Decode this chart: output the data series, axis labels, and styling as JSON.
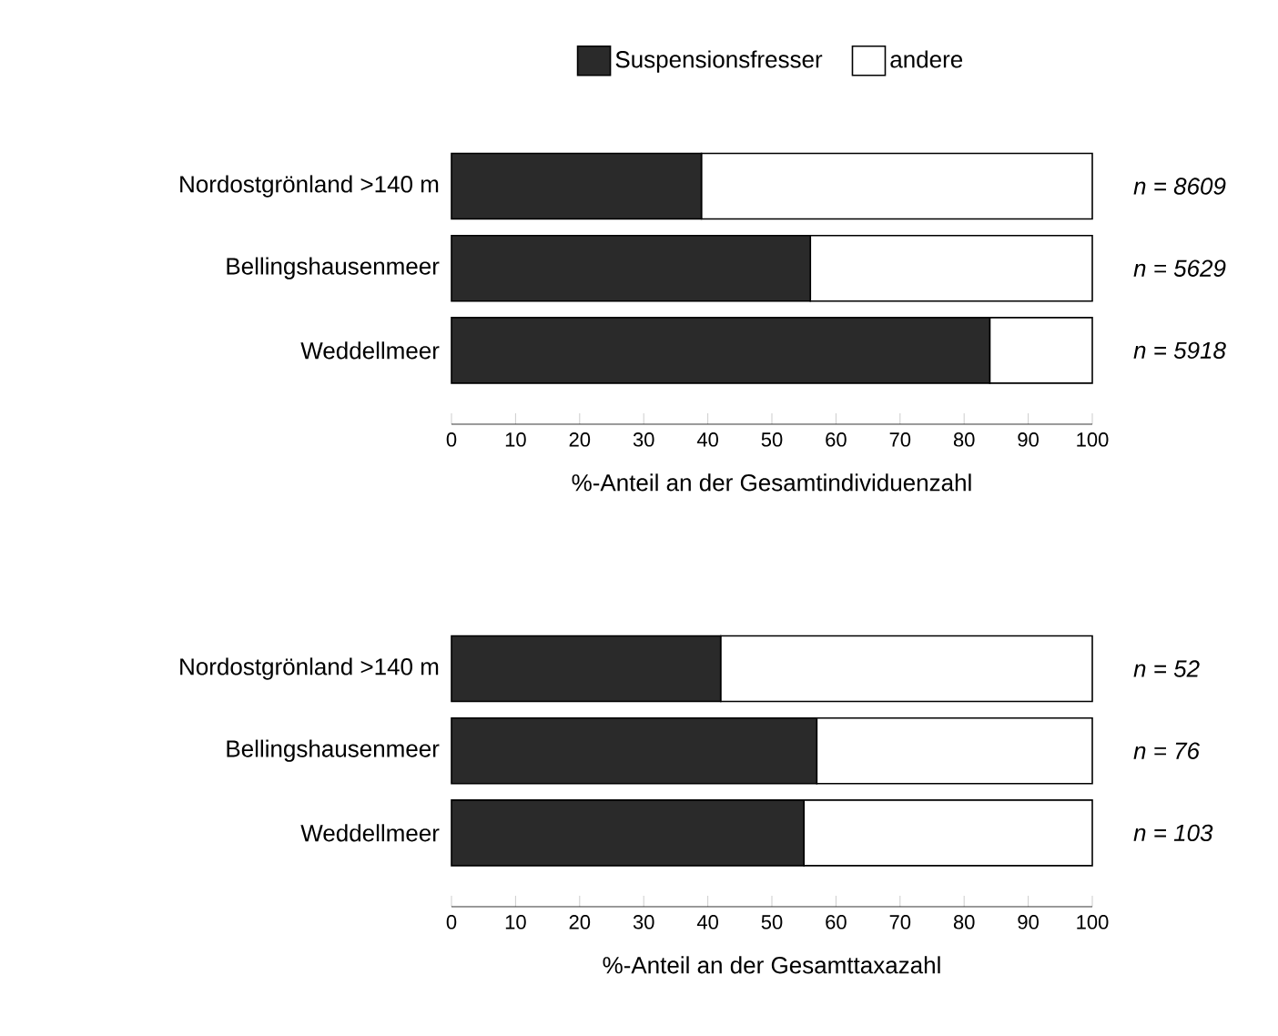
{
  "chart_data": [
    {
      "type": "bar",
      "orientation": "horizontal",
      "stacked": true,
      "categories": [
        "Nordostgrönland >140 m",
        "Bellingshausenmeer",
        "Weddellmeer"
      ],
      "series": [
        {
          "name": "Suspensionsfresser",
          "color": "#2a2a2a",
          "values": [
            39,
            56,
            84
          ]
        },
        {
          "name": "andere",
          "color": "#ffffff",
          "values": [
            61,
            44,
            16
          ]
        }
      ],
      "xlim": [
        0,
        100
      ],
      "xticks": [
        0,
        10,
        20,
        30,
        40,
        50,
        60,
        70,
        80,
        90,
        100
      ],
      "xlabel": "%-Anteil an der Gesamtindividuenzahl",
      "legend": "top",
      "annotations": [
        "n = 8609",
        "n = 5629",
        "n = 5918"
      ]
    },
    {
      "type": "bar",
      "orientation": "horizontal",
      "stacked": true,
      "categories": [
        "Nordostgrönland >140 m",
        "Bellingshausenmeer",
        "Weddellmeer"
      ],
      "series": [
        {
          "color": "#2a2a2a",
          "values": [
            42,
            57,
            55
          ]
        },
        {
          "color": "#ffffff",
          "values": [
            58,
            43,
            45
          ]
        }
      ],
      "xlim": [
        0,
        100
      ],
      "xticks": [
        0,
        10,
        20,
        30,
        40,
        50,
        60,
        70,
        80,
        90,
        100
      ],
      "xlabel": "%-Anteil an der Gesamttaxazahl",
      "annotations": [
        "n = 52",
        "n = 76",
        "n = 103"
      ]
    }
  ]
}
